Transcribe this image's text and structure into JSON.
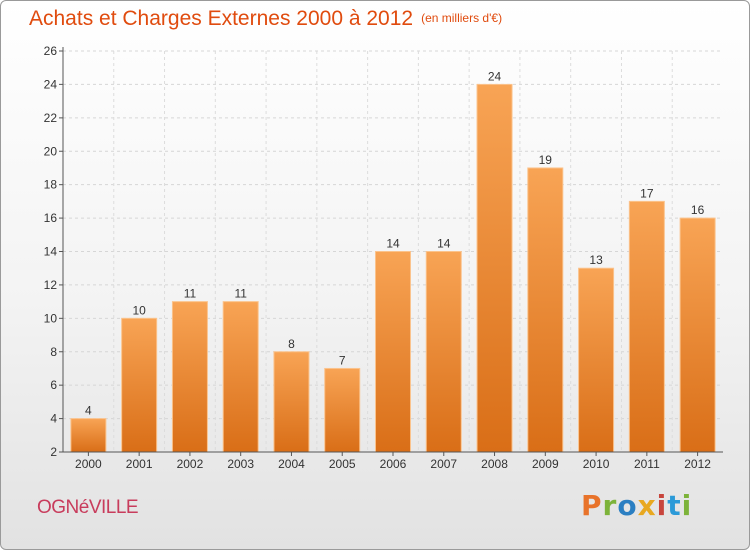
{
  "header": {
    "title": "Achats et Charges Externes 2000 à 2012",
    "unit": "(en milliers d'€)"
  },
  "footer": {
    "commune": "OGNéVILLE",
    "brand": "Proxiti",
    "brand_colors": [
      "#e8732a",
      "#7db33a",
      "#2b7fc2",
      "#e8a820",
      "#c8453c",
      "#2b9ad8",
      "#7db33a"
    ]
  },
  "colors": {
    "bar_top": "#f8a455",
    "bar_bottom": "#d96e17",
    "title": "#e04b0e",
    "commune": "#c83c5c"
  },
  "chart_data": {
    "type": "bar",
    "title": "Achats et Charges Externes 2000 à 2012",
    "xlabel": "",
    "ylabel": "",
    "categories": [
      "2000",
      "2001",
      "2002",
      "2003",
      "2004",
      "2005",
      "2006",
      "2007",
      "2008",
      "2009",
      "2010",
      "2011",
      "2012"
    ],
    "values": [
      4,
      10,
      11,
      11,
      8,
      7,
      14,
      14,
      24,
      19,
      13,
      17,
      16
    ],
    "ylim": [
      2,
      26
    ],
    "yticks": [
      2,
      4,
      6,
      8,
      10,
      12,
      14,
      16,
      18,
      20,
      22,
      24,
      26
    ],
    "grid": true
  }
}
